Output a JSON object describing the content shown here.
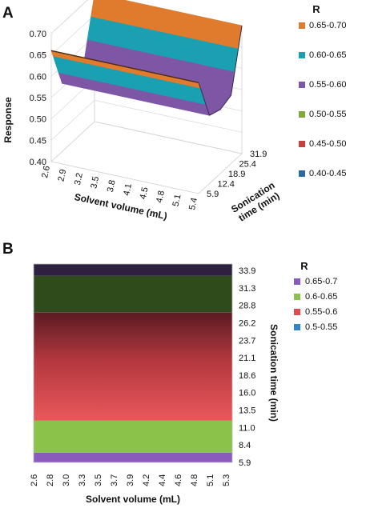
{
  "chart_data": [
    {
      "panel_label": "A",
      "type": "surface",
      "ylabel": "Response",
      "xlabel": "Solvent volume (mL)",
      "zlabel": "Sonication time (min)",
      "yticks": [
        "0.70",
        "0.65",
        "0.60",
        "0.55",
        "0.50",
        "0.45",
        "0.40"
      ],
      "xticks": [
        "2.6",
        "2.9",
        "3.2",
        "3.5",
        "3.8",
        "4.1",
        "4.5",
        "4.8",
        "5.1",
        "5.4"
      ],
      "zticks": [
        "5.9",
        "12.4",
        "18.9",
        "25.4",
        "31.9"
      ],
      "ylim": [
        0.4,
        0.7
      ],
      "legend_title": "R",
      "legend": [
        {
          "label": "0.65-0.70",
          "color": "#e07b2e"
        },
        {
          "label": "0.60-0.65",
          "color": "#1aa0b0"
        },
        {
          "label": "0.55-0.60",
          "color": "#7e56a6"
        },
        {
          "label": "0.50-0.55",
          "color": "#7eaa3c"
        },
        {
          "label": "0.45-0.50",
          "color": "#c9413e"
        },
        {
          "label": "0.40-0.45",
          "color": "#2c6aa5"
        }
      ],
      "surface": {
        "z_values": [
          5.9,
          12.4,
          18.9,
          25.4,
          31.9
        ],
        "response_profile": [
          0.66,
          0.56,
          0.55,
          0.56,
          0.7
        ]
      }
    },
    {
      "panel_label": "B",
      "type": "heatmap",
      "xlabel": "Solvent volume (mL)",
      "ylabel": "Sonication time (min)",
      "xticks": [
        "2.6",
        "2.8",
        "3.0",
        "3.3",
        "3.5",
        "3.7",
        "3.9",
        "4.2",
        "4.4",
        "4.6",
        "4.8",
        "5.1",
        "5.3"
      ],
      "yticks": [
        "33.9",
        "31.3",
        "28.8",
        "26.2",
        "23.7",
        "21.1",
        "18.6",
        "16.0",
        "13.5",
        "11.0",
        "8.4",
        "5.9"
      ],
      "legend_title": "R",
      "legend": [
        {
          "label": "0.65-0.7",
          "color": "#8a5bbd"
        },
        {
          "label": "0.6-0.65",
          "color": "#8bc34a"
        },
        {
          "label": "0.55-0.6",
          "color": "#e04b4b"
        },
        {
          "label": "0.5-0.55",
          "color": "#2a86c9"
        }
      ],
      "bands": [
        {
          "from": 5.9,
          "to": 7.3,
          "color": "#8a5bbd"
        },
        {
          "from": 7.3,
          "to": 11.9,
          "color": "#8bc34a"
        },
        {
          "from": 11.9,
          "to": 27.4,
          "gradient": [
            "#e8585a",
            "#5a1b22"
          ]
        },
        {
          "from": 27.4,
          "to": 32.6,
          "color": "#2f4a1b"
        },
        {
          "from": 32.6,
          "to": 34.3,
          "color": "#2e2140"
        }
      ]
    }
  ]
}
